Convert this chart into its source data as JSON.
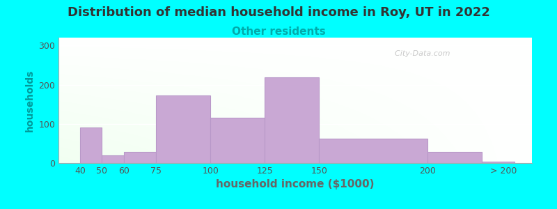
{
  "title": "Distribution of median household income in Roy, UT in 2022",
  "subtitle": "Other residents",
  "xlabel": "household income ($1000)",
  "ylabel": "households",
  "background_outer": "#00FFFF",
  "bar_color": "#C9A8D4",
  "bar_edgecolor": "#B898C8",
  "title_fontsize": 13,
  "subtitle_fontsize": 11,
  "subtitle_color": "#00AAAA",
  "ylabel_color": "#009999",
  "xlabel_color": "#666666",
  "bin_lefts": [
    40,
    50,
    60,
    75,
    100,
    125,
    150,
    200,
    225
  ],
  "bin_rights": [
    50,
    60,
    75,
    100,
    125,
    150,
    200,
    225,
    240
  ],
  "values": [
    90,
    20,
    28,
    172,
    115,
    218,
    62,
    28,
    3
  ],
  "xtick_positions": [
    40,
    50,
    60,
    75,
    100,
    125,
    150,
    200,
    235
  ],
  "xtick_labels": [
    "40",
    "50",
    "60",
    "75",
    "100",
    "125",
    "150",
    "200",
    "> 200"
  ],
  "ytick_values": [
    0,
    100,
    200,
    300
  ],
  "ylim": [
    0,
    320
  ],
  "xlim_left": 30,
  "xlim_right": 248
}
